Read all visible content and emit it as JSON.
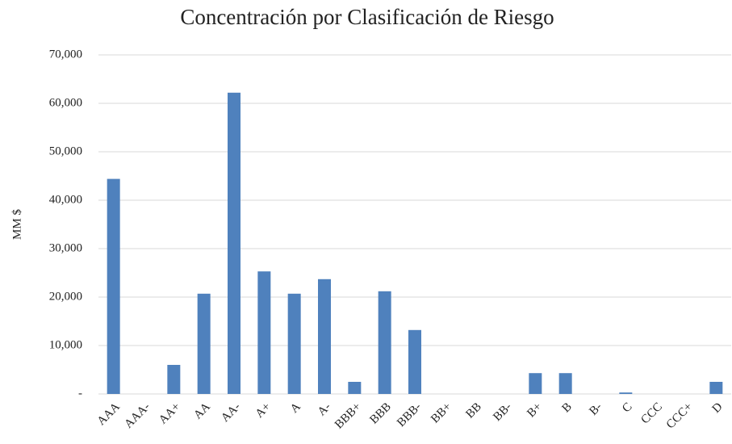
{
  "chart_data": {
    "type": "bar",
    "title": "Concentración por Clasificación de Riesgo",
    "y_label": "MM $",
    "categories": [
      "AAA",
      "AAA-",
      "AA+",
      "AA",
      "AA-",
      "A+",
      "A",
      "A-",
      "BBB+",
      "BBB",
      "BBB-",
      "BB+",
      "BB",
      "BB-",
      "B+",
      "B",
      "B-",
      "C",
      "CCC",
      "CCC+",
      "D"
    ],
    "values": [
      44400,
      0,
      6000,
      20700,
      62200,
      25300,
      20700,
      23700,
      2500,
      21200,
      13200,
      0,
      0,
      0,
      4300,
      4300,
      0,
      300,
      0,
      0,
      2500
    ],
    "color": "#4f81bd",
    "ylim": [
      0,
      70000
    ],
    "yticks": [
      {
        "value": 0,
        "label": "-"
      },
      {
        "value": 10000,
        "label": "10,000"
      },
      {
        "value": 20000,
        "label": "20,000"
      },
      {
        "value": 30000,
        "label": "30,000"
      },
      {
        "value": 40000,
        "label": "40,000"
      },
      {
        "value": 50000,
        "label": "50,000"
      },
      {
        "value": 60000,
        "label": "60,000"
      },
      {
        "value": 70000,
        "label": "70,000"
      }
    ],
    "grid": true
  }
}
